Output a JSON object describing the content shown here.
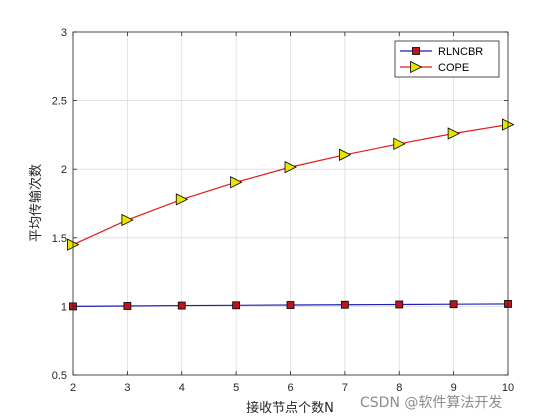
{
  "chart_data": {
    "type": "line",
    "xlabel": "接收节点个数N",
    "ylabel": "平均传输次数",
    "xlim": [
      2,
      10
    ],
    "ylim": [
      0.5,
      3
    ],
    "x": [
      2,
      3,
      4,
      5,
      6,
      7,
      8,
      9,
      10
    ],
    "xticks": [
      "2",
      "3",
      "4",
      "5",
      "6",
      "7",
      "8",
      "9",
      "10"
    ],
    "yticks": [
      "0.5",
      "1",
      "1.5",
      "2",
      "2.5",
      "3"
    ],
    "grid": true,
    "legend_position": "top-right",
    "series": [
      {
        "name": "RLNCBR",
        "color": "#1f1fb4",
        "marker": "square",
        "marker_color": "#c0141d",
        "values": [
          1.0,
          1.003,
          1.006,
          1.008,
          1.01,
          1.012,
          1.014,
          1.016,
          1.018
        ]
      },
      {
        "name": "COPE",
        "color": "#e31a1c",
        "marker": "triangle-right",
        "marker_color": "#e6e600",
        "values": [
          1.45,
          1.63,
          1.78,
          1.905,
          2.015,
          2.105,
          2.185,
          2.26,
          2.325
        ]
      }
    ]
  },
  "watermark": "CSDN @软件算法开发"
}
